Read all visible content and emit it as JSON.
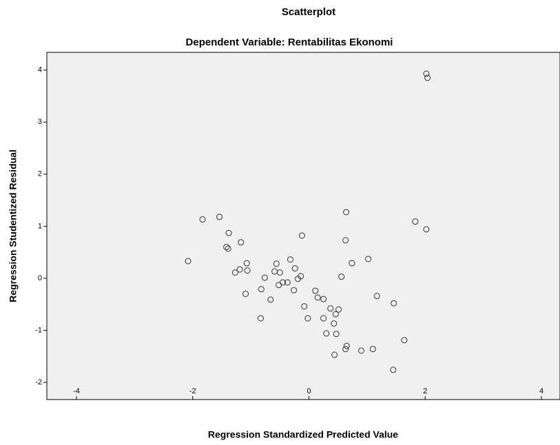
{
  "chart_data": {
    "type": "scatter",
    "title": "Scatterplot",
    "subtitle": "Dependent Variable: Rentabilitas Ekonomi",
    "x_label": "Regression Standardized Predicted Value",
    "y_label": "Regression Studentized Residual",
    "xlim": [
      -4.51,
      4.32
    ],
    "ylim": [
      -2.33,
      4.34
    ],
    "xticks": [
      -4,
      -2,
      0,
      2,
      4
    ],
    "yticks": [
      -2,
      -1,
      0,
      1,
      2,
      3,
      4
    ],
    "color": "#333333",
    "x": [
      2.02,
      2.04,
      -1.83,
      -1.54,
      -1.38,
      -1.17,
      -1.42,
      -1.39,
      -2.08,
      -0.12,
      0.64,
      0.63,
      0.74,
      1.02,
      1.83,
      2.02,
      -1.07,
      -1.19,
      -1.27,
      -1.06,
      -0.76,
      -0.56,
      -0.59,
      -0.5,
      -0.32,
      -0.24,
      -0.14,
      -0.19,
      -0.52,
      -0.45,
      -0.37,
      -0.82,
      -1.09,
      -0.66,
      -0.26,
      0.11,
      0.15,
      0.56,
      -0.83,
      -0.08,
      -0.02,
      0.25,
      0.25,
      0.37,
      0.51,
      0.46,
      0.43,
      0.3,
      0.47,
      1.17,
      1.46,
      0.65,
      0.63,
      0.9,
      1.1,
      0.44,
      1.64,
      1.45
    ],
    "values": [
      3.93,
      3.85,
      1.13,
      1.18,
      0.87,
      0.69,
      0.6,
      0.57,
      0.33,
      0.82,
      1.27,
      0.73,
      0.29,
      0.37,
      1.09,
      0.94,
      0.29,
      0.17,
      0.11,
      0.15,
      0.01,
      0.28,
      0.13,
      0.11,
      0.36,
      0.19,
      0.04,
      -0.01,
      -0.13,
      -0.08,
      -0.08,
      -0.21,
      -0.3,
      -0.41,
      -0.23,
      -0.24,
      -0.37,
      0.03,
      -0.77,
      -0.54,
      -0.77,
      -0.4,
      -0.77,
      -0.58,
      -0.6,
      -0.69,
      -0.87,
      -1.06,
      -1.07,
      -0.34,
      -0.48,
      -1.3,
      -1.36,
      -1.39,
      -1.36,
      -1.47,
      -1.19,
      -1.76
    ]
  }
}
